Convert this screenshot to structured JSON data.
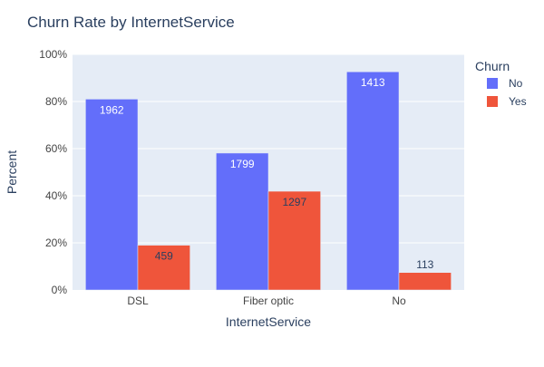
{
  "chart_data": {
    "type": "bar",
    "title": "Churn Rate by InternetService",
    "xlabel": "InternetService",
    "ylabel": "Percent",
    "categories": [
      "DSL",
      "Fiber optic",
      "No"
    ],
    "ylim": [
      0,
      100
    ],
    "yticks": [
      0,
      20,
      40,
      60,
      80,
      100
    ],
    "ytick_suffix": "%",
    "grid": true,
    "legend": {
      "title": "Churn",
      "placement": "top-right"
    },
    "series": [
      {
        "name": "No",
        "color": "#636efa",
        "values": [
          81.0,
          58.1,
          92.6
        ],
        "labels": [
          "1962",
          "1799",
          "1413"
        ],
        "label_color": "#ffffff"
      },
      {
        "name": "Yes",
        "color": "#ef553b",
        "values": [
          19.0,
          41.9,
          7.4
        ],
        "labels": [
          "459",
          "1297",
          "113"
        ],
        "label_color": "#2a3f5f"
      }
    ]
  },
  "colors": {
    "plot_background": "#e5ecf6",
    "grid": "#ffffff",
    "text": "#2a3f5f",
    "tick_text": "#444444"
  }
}
